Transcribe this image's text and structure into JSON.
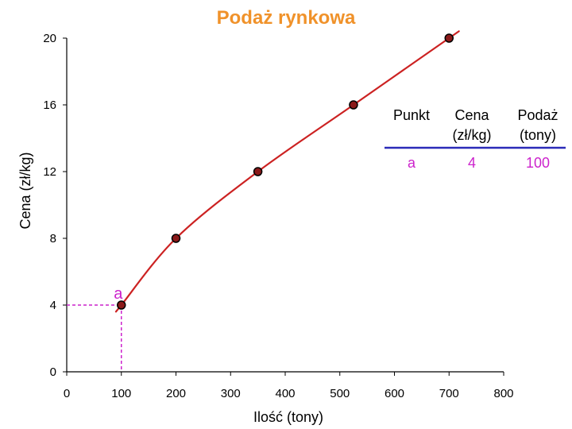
{
  "colors": {
    "title": "#F0922A",
    "line": "#CC2222",
    "marker_fill": "#8B1A1A",
    "guide": "#CC22CC",
    "table_rule": "#2B2BB8",
    "table_value": "#CC22CC"
  },
  "chart_data": {
    "type": "line",
    "title": "Podaż rynkowa",
    "xlabel": "Ilość (tony)",
    "ylabel": "Cena (zł/kg)",
    "xlim": [
      0,
      800
    ],
    "ylim": [
      0,
      20
    ],
    "x_ticks": [
      "0",
      "100",
      "200",
      "300",
      "400",
      "500",
      "600",
      "700",
      "800"
    ],
    "y_ticks": [
      "0",
      "4",
      "8",
      "12",
      "16",
      "20"
    ],
    "grid": false,
    "series": [
      {
        "points": [
          {
            "x": 100,
            "y": 4
          },
          {
            "x": 200,
            "y": 8
          },
          {
            "x": 350,
            "y": 12
          },
          {
            "x": 525,
            "y": 16
          },
          {
            "x": 700,
            "y": 20
          }
        ]
      }
    ],
    "highlight": {
      "label": "a",
      "x": 100,
      "y": 4
    },
    "annotation_table": {
      "headers": [
        [
          "Punkt"
        ],
        [
          "Cena",
          "(zł/kg)"
        ],
        [
          "Podaż",
          "(tony)"
        ]
      ],
      "row": [
        "a",
        "4",
        "100"
      ]
    }
  }
}
